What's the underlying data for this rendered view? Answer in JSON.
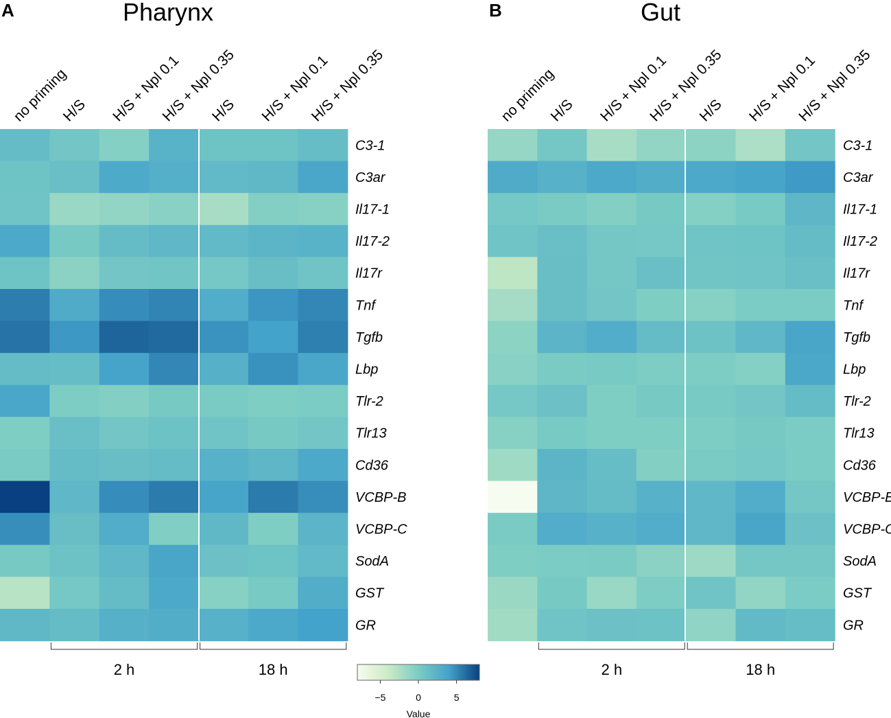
{
  "panels": [
    {
      "letter": "A",
      "title": "Pharynx"
    },
    {
      "letter": "B",
      "title": "Gut"
    }
  ],
  "legend": {
    "title": "Value",
    "ticks": [
      "−5",
      "0",
      "5"
    ],
    "tick_values": [
      -5,
      0,
      5
    ],
    "range": [
      -8,
      8
    ],
    "colors": [
      "#f7fcf0",
      "#ccebc5",
      "#7bccc4",
      "#43a2ca",
      "#084081"
    ]
  },
  "chart_data": [
    {
      "type": "heatmap",
      "title": "Pharynx",
      "panel": "A",
      "columns": [
        "no priming",
        "H/S",
        "H/S + Npl 0.1",
        "H/S + Npl 0.35",
        "H/S",
        "H/S + Npl 0.1",
        "H/S + Npl 0.35"
      ],
      "rows": [
        "C3-1",
        "C3ar",
        "Il17-1",
        "Il17-2",
        "Il17r",
        "Tnf",
        "Tgfb",
        "Lbp",
        "Tlr-2",
        "Tlr13",
        "Cd36",
        "VCBP-B",
        "VCBP-C",
        "SodA",
        "GST",
        "GR"
      ],
      "groups": [
        {
          "label": "2 h",
          "columns": [
            1,
            3
          ]
        },
        {
          "label": "18 h",
          "columns": [
            4,
            6
          ]
        }
      ],
      "values": [
        [
          1.5,
          0.6,
          -0.5,
          2.5,
          0.9,
          0.9,
          1.4
        ],
        [
          0.9,
          1.2,
          3.2,
          2.8,
          1.8,
          1.9,
          3.5
        ],
        [
          0.8,
          -1.5,
          -1.2,
          -0.7,
          -2.2,
          -0.4,
          -0.6
        ],
        [
          3.3,
          0.3,
          1.5,
          2.0,
          1.8,
          2.2,
          2.4
        ],
        [
          0.9,
          -0.8,
          0.6,
          0.7,
          0.4,
          1.3,
          0.8
        ],
        [
          5.5,
          3.1,
          4.9,
          5.2,
          3.0,
          4.5,
          5.1
        ],
        [
          5.9,
          4.4,
          6.5,
          6.3,
          4.6,
          3.9,
          5.4
        ],
        [
          1.5,
          1.4,
          3.8,
          5.1,
          2.7,
          4.7,
          3.5
        ],
        [
          3.5,
          -0.1,
          -0.4,
          0.3,
          0.1,
          -0.2,
          0.0
        ],
        [
          -0.2,
          1.2,
          0.6,
          1.0,
          0.8,
          0.3,
          0.6
        ],
        [
          0.1,
          1.5,
          1.3,
          1.6,
          2.6,
          2.1,
          3.3
        ],
        [
          8.0,
          2.0,
          4.9,
          5.6,
          3.7,
          5.6,
          4.8
        ],
        [
          4.8,
          1.3,
          3.0,
          -0.3,
          1.9,
          -0.2,
          2.3
        ],
        [
          0.3,
          1.0,
          2.0,
          3.6,
          1.1,
          0.9,
          1.8
        ],
        [
          -3.0,
          0.4,
          1.5,
          3.3,
          -0.6,
          0.2,
          2.9
        ],
        [
          1.9,
          1.6,
          2.7,
          2.9,
          2.6,
          3.3,
          3.9
        ]
      ]
    },
    {
      "type": "heatmap",
      "title": "Gut",
      "panel": "B",
      "columns": [
        "no priming",
        "H/S",
        "H/S + Npl 0.1",
        "H/S + Npl 0.35",
        "H/S",
        "H/S + Npl 0.1",
        "H/S + Npl 0.35"
      ],
      "rows": [
        "C3-1",
        "C3ar",
        "Il17-1",
        "Il17-2",
        "Il17r",
        "Tnf",
        "Tgfb",
        "Lbp",
        "Tlr-2",
        "Tlr13",
        "Cd36",
        "VCBP-B",
        "VCBP-C",
        "SodA",
        "GST",
        "GR"
      ],
      "groups": [
        {
          "label": "2 h",
          "columns": [
            1,
            3
          ]
        },
        {
          "label": "18 h",
          "columns": [
            4,
            6
          ]
        }
      ],
      "values": [
        [
          -1.3,
          0.5,
          -2.2,
          -1.2,
          -0.9,
          -2.4,
          0.6
        ],
        [
          3.1,
          2.6,
          3.3,
          2.9,
          3.3,
          3.7,
          4.3
        ],
        [
          0.4,
          0.1,
          -0.4,
          0.3,
          -0.5,
          0.2,
          2.1
        ],
        [
          0.8,
          1.2,
          0.5,
          0.4,
          0.8,
          0.9,
          1.6
        ],
        [
          -3.3,
          1.3,
          0.5,
          1.2,
          0.7,
          0.8,
          1.2
        ],
        [
          -2.1,
          1.3,
          0.6,
          -0.2,
          -0.6,
          0.0,
          0.0
        ],
        [
          -0.9,
          2.3,
          3.0,
          1.6,
          1.0,
          2.0,
          3.6
        ],
        [
          -0.7,
          0.1,
          0.2,
          -0.1,
          -0.1,
          -0.5,
          3.4
        ],
        [
          0.4,
          1.1,
          -0.2,
          0.3,
          0.2,
          0.6,
          1.5
        ],
        [
          -0.6,
          0.2,
          -0.2,
          -0.2,
          -0.1,
          0.3,
          0.0
        ],
        [
          -1.8,
          2.2,
          1.4,
          -0.4,
          0.1,
          0.4,
          0.0
        ],
        [
          -8.0,
          2.1,
          1.6,
          2.6,
          2.0,
          3.0,
          0.5
        ],
        [
          0.1,
          3.0,
          2.6,
          3.0,
          2.0,
          3.6,
          1.1
        ],
        [
          -0.2,
          0.0,
          0.1,
          -0.8,
          -1.7,
          0.5,
          0.5
        ],
        [
          -1.6,
          0.3,
          -1.5,
          -0.1,
          0.8,
          -1.2,
          0.0
        ],
        [
          -1.9,
          0.8,
          1.1,
          1.0,
          -1.0,
          1.7,
          1.4
        ]
      ]
    }
  ]
}
